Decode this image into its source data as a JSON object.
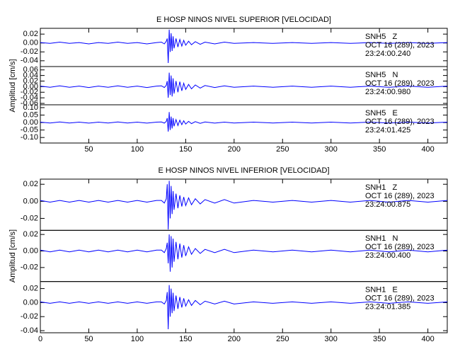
{
  "chart_data": [
    {
      "type": "line",
      "title": "E HOSP NINOS NIVEL SUPERIOR [VELOCIDAD]",
      "ylabel": "Amplitud [cm/s]",
      "xlim": [
        0,
        420
      ],
      "xticks": [
        50,
        100,
        150,
        200,
        250,
        300,
        350,
        400
      ],
      "x": [
        0,
        10,
        20,
        30,
        40,
        50,
        60,
        70,
        80,
        90,
        100,
        110,
        120,
        125,
        128,
        130,
        131,
        132,
        133,
        134,
        135,
        136,
        137,
        138,
        140,
        142,
        144,
        146,
        148,
        150,
        153,
        156,
        160,
        165,
        170,
        180,
        190,
        200,
        220,
        240,
        260,
        280,
        300,
        320,
        340,
        360,
        380,
        400,
        420
      ],
      "series": [
        {
          "name": "SNH5   Z",
          "annotations": [
            "OCT 16 (289), 2023",
            "23:24:00.240"
          ],
          "color": "#0000ff",
          "ylim": [
            -0.053,
            0.033
          ],
          "yticks": [
            {
              "value": 0.02,
              "label": "0.02"
            },
            {
              "value": 0,
              "label": "0.00"
            },
            {
              "value": -0.02,
              "label": "-0.02"
            },
            {
              "value": -0.04,
              "label": "-0.04"
            }
          ],
          "values": [
            0.001,
            -0.001,
            0.002,
            -0.001,
            0.001,
            -0.002,
            0.001,
            -0.001,
            0.002,
            -0.001,
            0.001,
            -0.002,
            0.001,
            0.002,
            -0.002,
            0.004,
            0.01,
            -0.045,
            0.03,
            -0.02,
            0.022,
            -0.018,
            0.015,
            -0.012,
            0.01,
            -0.009,
            0.008,
            -0.007,
            0.006,
            -0.005,
            0.004,
            -0.004,
            0.003,
            -0.003,
            0.002,
            -0.002,
            0.002,
            -0.001,
            0.001,
            -0.001,
            0.001,
            -0.001,
            0.001,
            -0.001,
            0.001,
            -0.001,
            0.001,
            -0.001,
            0.001
          ]
        },
        {
          "name": "SNH5   N",
          "annotations": [
            "OCT 16 (289), 2023",
            "23:24:00.980"
          ],
          "color": "#0000ff",
          "ylim": [
            -0.065,
            0.072
          ],
          "yticks": [
            {
              "value": 0.06,
              "label": "0.06"
            },
            {
              "value": 0.04,
              "label": "0.04"
            },
            {
              "value": 0.02,
              "label": "0.02"
            },
            {
              "value": 0,
              "label": "0.00"
            },
            {
              "value": -0.02,
              "label": "-0.02"
            },
            {
              "value": -0.04,
              "label": "-0.04"
            },
            {
              "value": -0.06,
              "label": "-0.06"
            }
          ],
          "values": [
            0.002,
            -0.002,
            0.003,
            -0.002,
            0.002,
            -0.003,
            0.002,
            -0.002,
            0.003,
            -0.002,
            0.002,
            -0.003,
            0.002,
            0.003,
            -0.003,
            0.005,
            0.02,
            -0.04,
            0.05,
            -0.03,
            0.04,
            -0.035,
            0.03,
            -0.025,
            0.02,
            -0.02,
            0.018,
            -0.015,
            0.012,
            -0.01,
            0.008,
            -0.008,
            0.006,
            -0.005,
            0.004,
            -0.003,
            0.003,
            -0.002,
            0.002,
            -0.002,
            0.002,
            -0.002,
            0.002,
            -0.002,
            0.002,
            -0.002,
            0.002,
            -0.002,
            0.002
          ]
        },
        {
          "name": "SNH5   E",
          "annotations": [
            "OCT 16 (289), 2023",
            "23:24:01.425"
          ],
          "color": "#0000ff",
          "ylim": [
            -0.137,
            0.119
          ],
          "yticks": [
            {
              "value": 0.1,
              "label": "0.10"
            },
            {
              "value": 0.05,
              "label": "0.05"
            },
            {
              "value": 0,
              "label": "0.00"
            },
            {
              "value": -0.05,
              "label": "-0.05"
            },
            {
              "value": -0.1,
              "label": "-0.10"
            }
          ],
          "values": [
            0.003,
            -0.003,
            0.004,
            -0.003,
            0.003,
            -0.004,
            0.003,
            -0.003,
            0.004,
            -0.003,
            0.003,
            -0.004,
            0.003,
            0.004,
            -0.004,
            0.008,
            0.03,
            -0.06,
            0.07,
            -0.05,
            0.04,
            -0.04,
            0.03,
            -0.025,
            0.02,
            -0.02,
            0.016,
            -0.014,
            0.012,
            -0.01,
            0.008,
            -0.007,
            0.006,
            -0.005,
            0.004,
            -0.004,
            0.003,
            -0.003,
            0.003,
            -0.003,
            0.003,
            -0.003,
            0.003,
            -0.003,
            0.003,
            -0.003,
            0.003,
            -0.003,
            0.003
          ]
        }
      ]
    },
    {
      "type": "line",
      "title": "E HOSP NINOS NIVEL INFERIOR [VELOCIDAD]",
      "ylabel": "Amplitud [cm/s]",
      "xlim": [
        0,
        420
      ],
      "xticks": [
        0,
        50,
        100,
        150,
        200,
        250,
        300,
        350,
        400
      ],
      "x": [
        0,
        10,
        20,
        30,
        40,
        50,
        60,
        70,
        80,
        90,
        100,
        110,
        120,
        125,
        128,
        130,
        131,
        132,
        133,
        134,
        135,
        136,
        137,
        138,
        140,
        142,
        144,
        146,
        148,
        150,
        153,
        156,
        160,
        165,
        170,
        180,
        190,
        200,
        220,
        240,
        260,
        280,
        300,
        320,
        340,
        360,
        380,
        400,
        420
      ],
      "series": [
        {
          "name": "SNH1   Z",
          "annotations": [
            "OCT 16 (289), 2023",
            "23:24:00.875"
          ],
          "color": "#0000ff",
          "ylim": [
            -0.034,
            0.026
          ],
          "yticks": [
            {
              "value": 0.02,
              "label": "0.02"
            },
            {
              "value": 0,
              "label": "0.00"
            },
            {
              "value": -0.02,
              "label": "-0.02"
            }
          ],
          "values": [
            0.001,
            -0.001,
            0.001,
            -0.001,
            0.001,
            -0.001,
            0.001,
            -0.001,
            0.001,
            -0.001,
            0.001,
            -0.001,
            0.001,
            0.001,
            -0.002,
            0.003,
            0.02,
            -0.033,
            0.024,
            -0.02,
            0.018,
            -0.015,
            0.012,
            -0.01,
            0.009,
            -0.008,
            0.007,
            -0.006,
            0.005,
            -0.005,
            0.004,
            -0.004,
            0.003,
            -0.003,
            0.002,
            -0.002,
            0.002,
            -0.002,
            0.001,
            -0.001,
            0.001,
            -0.001,
            0.001,
            -0.001,
            0.001,
            -0.001,
            0.001,
            -0.001,
            0.001
          ]
        },
        {
          "name": "SNH1   N",
          "annotations": [
            "OCT 16 (289), 2023",
            "23:24:00.400"
          ],
          "color": "#0000ff",
          "ylim": [
            -0.037,
            0.025
          ],
          "yticks": [
            {
              "value": 0.02,
              "label": "0.02"
            },
            {
              "value": 0,
              "label": "0.00"
            },
            {
              "value": -0.02,
              "label": "-0.02"
            }
          ],
          "values": [
            0.001,
            -0.001,
            0.001,
            -0.001,
            0.001,
            -0.001,
            0.001,
            -0.001,
            0.001,
            -0.001,
            0.001,
            -0.001,
            0.001,
            0.001,
            -0.002,
            0.003,
            0.01,
            -0.015,
            0.02,
            -0.025,
            0.018,
            -0.02,
            0.015,
            -0.013,
            0.011,
            -0.01,
            0.009,
            -0.008,
            0.007,
            -0.006,
            0.005,
            -0.004,
            0.003,
            -0.003,
            0.002,
            -0.002,
            0.002,
            -0.002,
            0.001,
            -0.001,
            0.001,
            -0.001,
            0.001,
            -0.001,
            0.001,
            -0.001,
            0.001,
            -0.001,
            0.001
          ]
        },
        {
          "name": "SNH1   E",
          "annotations": [
            "OCT 16 (289), 2023",
            "23:24:01.385"
          ],
          "color": "#0000ff",
          "ylim": [
            -0.043,
            0.03
          ],
          "yticks": [
            {
              "value": 0.02,
              "label": "0.02"
            },
            {
              "value": 0,
              "label": "0.00"
            },
            {
              "value": -0.02,
              "label": "-0.02"
            },
            {
              "value": -0.04,
              "label": "-0.04"
            }
          ],
          "values": [
            0.001,
            -0.001,
            0.001,
            -0.001,
            0.001,
            -0.001,
            0.001,
            -0.001,
            0.001,
            -0.001,
            0.001,
            -0.001,
            0.001,
            0.001,
            -0.002,
            0.003,
            0.015,
            -0.038,
            0.025,
            -0.02,
            0.02,
            -0.015,
            0.014,
            -0.012,
            0.01,
            -0.009,
            0.008,
            -0.007,
            0.006,
            -0.005,
            0.004,
            -0.004,
            0.003,
            -0.003,
            0.002,
            -0.002,
            0.002,
            -0.002,
            0.001,
            -0.001,
            0.001,
            -0.001,
            0.001,
            -0.001,
            0.001,
            -0.001,
            0.001,
            -0.001,
            0.001
          ]
        }
      ]
    }
  ]
}
